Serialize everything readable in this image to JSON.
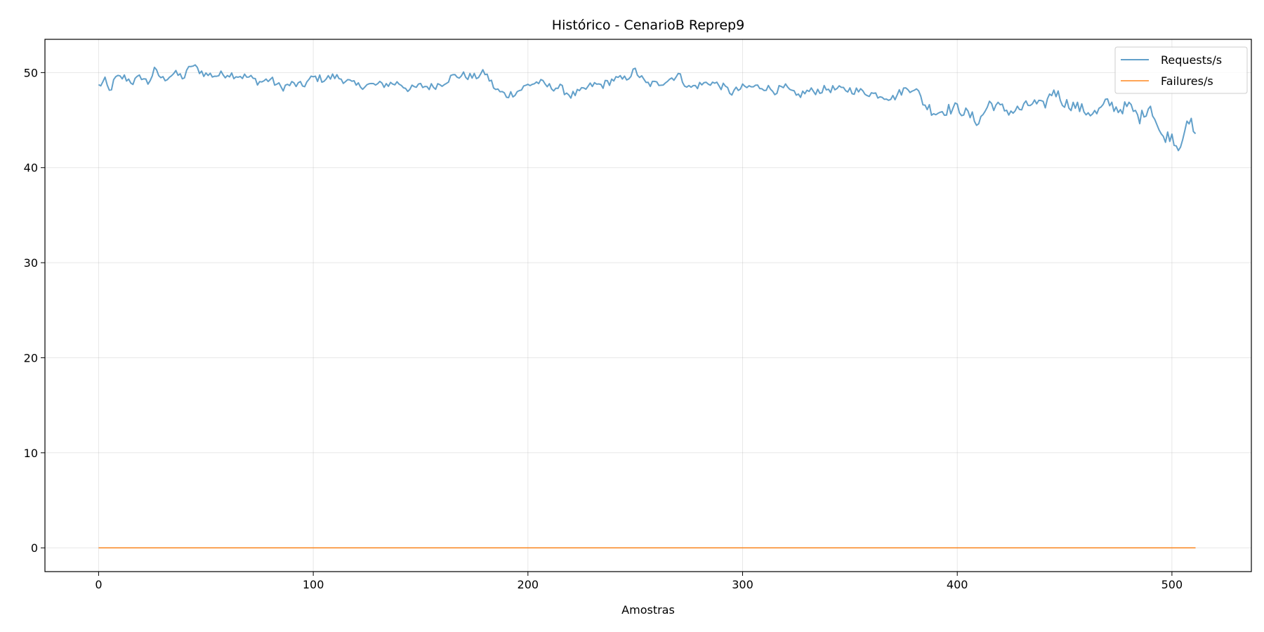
{
  "chart_data": {
    "type": "line",
    "title": "Histórico - CenarioB Reprep9",
    "xlabel": "Amostras",
    "ylabel": "",
    "xlim": [
      -25,
      537
    ],
    "ylim": [
      -2.5,
      53.5
    ],
    "x_ticks": [
      0,
      100,
      200,
      300,
      400,
      500
    ],
    "y_ticks": [
      0,
      10,
      20,
      30,
      40,
      50
    ],
    "grid": true,
    "legend_position": "upper right",
    "n_points": 512,
    "series": [
      {
        "name": "Requests/s",
        "color": "#1f77b4",
        "opacity": 0.7,
        "keypoints": [
          [
            0,
            48.6
          ],
          [
            3,
            49.1
          ],
          [
            5,
            48.0
          ],
          [
            8,
            49.4
          ],
          [
            12,
            49.5
          ],
          [
            16,
            49.0
          ],
          [
            20,
            49.6
          ],
          [
            23,
            48.9
          ],
          [
            26,
            50.2
          ],
          [
            30,
            49.3
          ],
          [
            35,
            49.9
          ],
          [
            40,
            49.5
          ],
          [
            43,
            50.8
          ],
          [
            50,
            49.8
          ],
          [
            55,
            49.7
          ],
          [
            60,
            49.9
          ],
          [
            70,
            49.5
          ],
          [
            75,
            49.0
          ],
          [
            80,
            49.3
          ],
          [
            85,
            48.4
          ],
          [
            90,
            48.8
          ],
          [
            95,
            48.6
          ],
          [
            100,
            49.5
          ],
          [
            105,
            49.3
          ],
          [
            110,
            49.6
          ],
          [
            115,
            49.2
          ],
          [
            120,
            48.6
          ],
          [
            125,
            48.7
          ],
          [
            130,
            48.7
          ],
          [
            135,
            48.8
          ],
          [
            140,
            48.9
          ],
          [
            145,
            48.2
          ],
          [
            150,
            48.6
          ],
          [
            155,
            48.5
          ],
          [
            160,
            48.9
          ],
          [
            165,
            49.6
          ],
          [
            170,
            49.7
          ],
          [
            175,
            49.5
          ],
          [
            180,
            50.0
          ],
          [
            185,
            48.2
          ],
          [
            190,
            47.6
          ],
          [
            195,
            48.0
          ],
          [
            200,
            48.7
          ],
          [
            205,
            49.0
          ],
          [
            210,
            48.5
          ],
          [
            215,
            48.4
          ],
          [
            220,
            47.6
          ],
          [
            225,
            48.0
          ],
          [
            230,
            48.7
          ],
          [
            235,
            48.7
          ],
          [
            240,
            49.3
          ],
          [
            245,
            49.3
          ],
          [
            250,
            50.2
          ],
          [
            255,
            48.8
          ],
          [
            260,
            48.8
          ],
          [
            265,
            49.2
          ],
          [
            270,
            49.8
          ],
          [
            275,
            48.4
          ],
          [
            280,
            48.7
          ],
          [
            285,
            49.0
          ],
          [
            290,
            48.6
          ],
          [
            295,
            47.9
          ],
          [
            300,
            48.4
          ],
          [
            305,
            48.5
          ],
          [
            310,
            48.5
          ],
          [
            315,
            48.1
          ],
          [
            320,
            48.4
          ],
          [
            325,
            47.5
          ],
          [
            330,
            48.0
          ],
          [
            335,
            48.1
          ],
          [
            340,
            48.3
          ],
          [
            345,
            48.2
          ],
          [
            350,
            48.2
          ],
          [
            355,
            48.0
          ],
          [
            360,
            47.8
          ],
          [
            365,
            47.6
          ],
          [
            370,
            47.3
          ],
          [
            375,
            48.2
          ],
          [
            380,
            48.4
          ],
          [
            385,
            46.6
          ],
          [
            390,
            45.8
          ],
          [
            395,
            46.1
          ],
          [
            400,
            46.3
          ],
          [
            405,
            45.6
          ],
          [
            410,
            44.8
          ],
          [
            415,
            46.8
          ],
          [
            420,
            46.3
          ],
          [
            425,
            45.9
          ],
          [
            430,
            46.2
          ],
          [
            435,
            46.8
          ],
          [
            440,
            46.4
          ],
          [
            445,
            48.2
          ],
          [
            450,
            46.8
          ],
          [
            455,
            46.5
          ],
          [
            460,
            45.9
          ],
          [
            465,
            45.7
          ],
          [
            470,
            46.9
          ],
          [
            475,
            46.1
          ],
          [
            480,
            46.5
          ],
          [
            485,
            45.2
          ],
          [
            490,
            46.6
          ],
          [
            495,
            43.2
          ],
          [
            500,
            43.4
          ],
          [
            503,
            42.0
          ],
          [
            506,
            44.1
          ],
          [
            509,
            44.7
          ],
          [
            511,
            43.1
          ]
        ]
      },
      {
        "name": "Failures/s",
        "color": "#ff7f0e",
        "opacity": 0.7,
        "keypoints": [
          [
            0,
            0
          ],
          [
            511,
            0
          ]
        ]
      }
    ]
  }
}
